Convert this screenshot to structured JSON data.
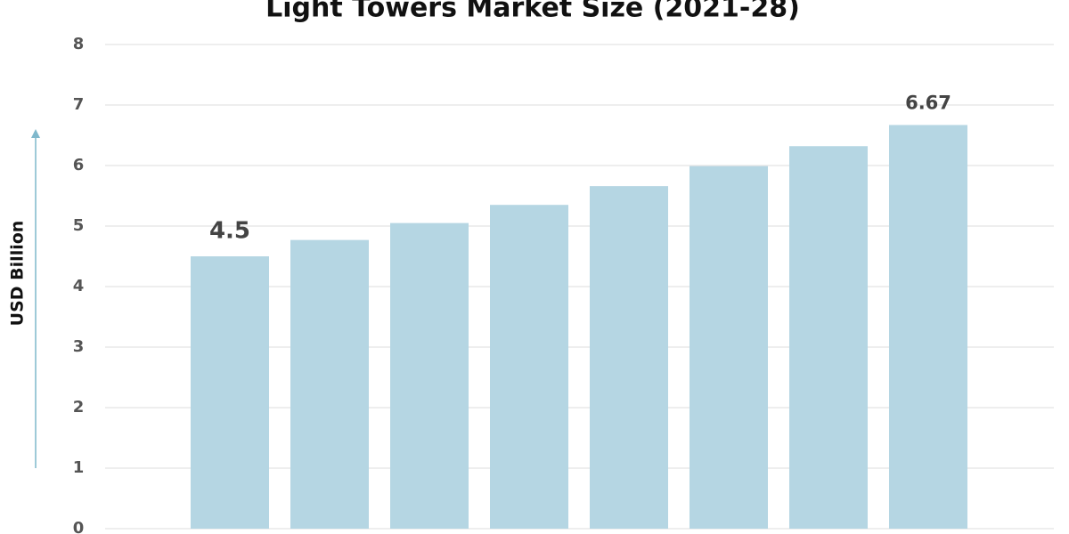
{
  "chart_data": {
    "type": "bar",
    "title": "Light Towers Market Size (2021-28)",
    "y_label": "USD Billion",
    "categories": [
      null,
      null,
      null,
      null,
      null,
      null,
      null,
      null
    ],
    "values": [
      4.5,
      4.77,
      5.05,
      5.35,
      5.66,
      5.99,
      6.32,
      6.67
    ],
    "value_labels": [
      "4.5",
      null,
      null,
      null,
      null,
      null,
      null,
      "6.67"
    ],
    "color": "#b5d6e3",
    "ylim": [
      0,
      8
    ],
    "yticks": [
      0,
      1,
      2,
      3,
      4,
      5,
      6,
      7,
      8
    ],
    "grid": true
  }
}
